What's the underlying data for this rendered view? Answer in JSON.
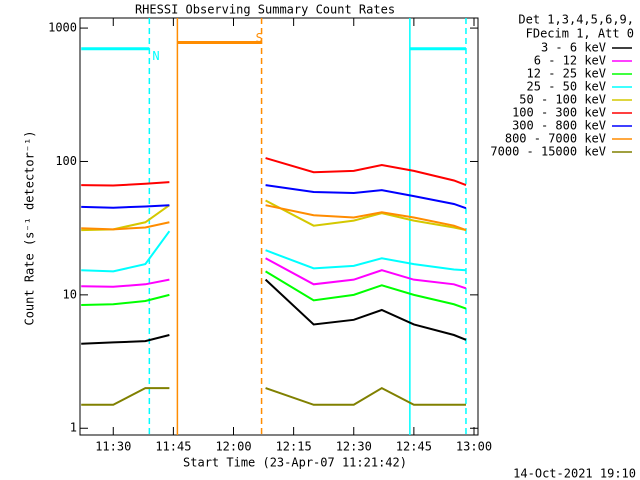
{
  "chart_data": {
    "type": "line",
    "title": "RHESSI Observing Summary Count Rates",
    "x_label": "Start Time (23-Apr-07 11:21:42)",
    "y_label": "Count Rate (s⁻¹ detector⁻¹)",
    "legend_header": [
      "Det 1,3,4,5,6,9,",
      "FDecim 1, Att 0"
    ],
    "footer": "14-Oct-2021 19:10",
    "log_y": true,
    "xlim": [
      "11:21:42",
      "13:01"
    ],
    "xticks": [
      "11:30",
      "11:45",
      "12:00",
      "12:15",
      "12:30",
      "12:45",
      "13:00"
    ],
    "ylim": [
      0.89,
      1190
    ],
    "yticks": [
      1,
      10,
      100,
      1000
    ],
    "x": [
      "11:22",
      "11:30",
      "11:38",
      "11:44",
      "12:00",
      "12:08",
      "12:20",
      "12:30",
      "12:37",
      "12:45",
      "12:55",
      "12:58"
    ],
    "series": [
      {
        "name": "3 - 6 keV",
        "color": "#000000",
        "values": [
          4.3,
          4.4,
          4.5,
          5,
          null,
          13,
          6,
          6.5,
          7.7,
          6,
          5,
          4.6
        ]
      },
      {
        "name": "6 - 12 keV",
        "color": "#ff00ff",
        "values": [
          11.6,
          11.5,
          12,
          13,
          null,
          18.8,
          12,
          13,
          15.3,
          13,
          12,
          11.2
        ]
      },
      {
        "name": "12 - 25 keV",
        "color": "#00ff00",
        "values": [
          8.4,
          8.5,
          9,
          10,
          null,
          15,
          9.1,
          10,
          11.8,
          10,
          8.5,
          7.9
        ]
      },
      {
        "name": "25 - 50 keV",
        "color": "#00ffff",
        "values": [
          15.3,
          15,
          17,
          30,
          null,
          21.6,
          15.8,
          16.5,
          18.8,
          17,
          15.5,
          15.3
        ]
      },
      {
        "name": "50 - 100 keV",
        "color": "#d4c800",
        "values": [
          30.6,
          31,
          35,
          47,
          null,
          51,
          33,
          36,
          41,
          36,
          32,
          30.6
        ]
      },
      {
        "name": "100 - 300 keV",
        "color": "#ff0000",
        "values": [
          66.5,
          66,
          68,
          70,
          null,
          106,
          83,
          85,
          94,
          85,
          72,
          66.5
        ]
      },
      {
        "name": "300 - 800 keV",
        "color": "#0000ff",
        "values": [
          45.7,
          45,
          46,
          47,
          null,
          66.5,
          59,
          58,
          61,
          55,
          48,
          44.6
        ]
      },
      {
        "name": "800 - 7000 keV",
        "color": "#ff8c00",
        "values": [
          31.6,
          31,
          32,
          35,
          null,
          47,
          39.5,
          38,
          41.6,
          38,
          33,
          30.6
        ]
      },
      {
        "name": "7000 - 15000 keV",
        "color": "#808000",
        "values": [
          1.5,
          1.5,
          2,
          2,
          null,
          2,
          1.5,
          1.5,
          2,
          1.5,
          1.5,
          1.5
        ]
      }
    ],
    "flag_bars": [
      {
        "label": "N",
        "color": "#00ffff",
        "start": "11:22",
        "end": "11:39",
        "level": 700
      },
      {
        "label": "S",
        "color": "#ff8c00",
        "start": "11:46",
        "end": "12:07",
        "level": 780
      },
      {
        "color": "#00ffff",
        "start": "12:44",
        "end": "12:58",
        "level": 700
      }
    ],
    "vlines": [
      {
        "x": "11:39",
        "color": "#00ffff",
        "dashed": true
      },
      {
        "x": "11:46",
        "color": "#ff8c00",
        "dashed": false
      },
      {
        "x": "12:07",
        "color": "#ff8c00",
        "dashed": true
      },
      {
        "x": "12:44",
        "color": "#00ffff",
        "dashed": false
      },
      {
        "x": "12:58",
        "color": "#00ffff",
        "dashed": true
      }
    ]
  }
}
